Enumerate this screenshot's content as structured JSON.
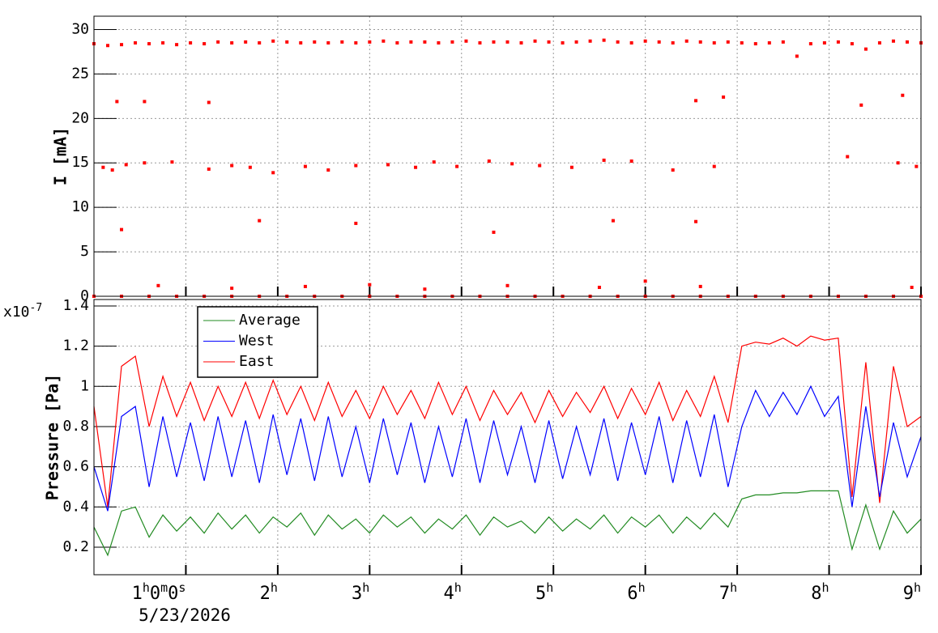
{
  "chart_data": [
    {
      "type": "scatter",
      "ylabel": "I [mA]",
      "color": "#ff0000",
      "grid": true,
      "xlim": [
        0,
        9
      ],
      "ylim": [
        0,
        31.5
      ],
      "yticks": [
        0,
        5,
        10,
        15,
        20,
        25,
        30
      ],
      "x": [
        0,
        0.15,
        0.3,
        0.45,
        0.6,
        0.75,
        0.9,
        1.05,
        1.2,
        1.35,
        1.5,
        1.65,
        1.8,
        1.95,
        2.1,
        2.25,
        2.4,
        2.55,
        2.7,
        2.85,
        3.0,
        3.15,
        3.3,
        3.45,
        3.6,
        3.75,
        3.9,
        4.05,
        4.2,
        4.35,
        4.5,
        4.65,
        4.8,
        4.95,
        5.1,
        5.25,
        5.4,
        5.55,
        5.7,
        5.85,
        6.0,
        6.15,
        6.3,
        6.45,
        6.6,
        6.75,
        6.9,
        7.05,
        7.2,
        7.35,
        7.5,
        7.65,
        7.8,
        7.95,
        8.1,
        8.25,
        8.4,
        8.55,
        8.7,
        8.85,
        9.0,
        0,
        0.3,
        0.6,
        0.9,
        1.2,
        1.5,
        1.8,
        2.1,
        2.4,
        2.7,
        3.0,
        3.3,
        3.6,
        3.9,
        4.2,
        4.5,
        4.8,
        5.1,
        5.4,
        5.7,
        6.0,
        6.3,
        6.6,
        6.9,
        7.2,
        7.5,
        7.8,
        8.1,
        8.4,
        8.7,
        9.0,
        0.1,
        0.2,
        0.35,
        0.55,
        0.85,
        1.25,
        1.5,
        1.7,
        1.95,
        2.3,
        2.55,
        2.85,
        3.2,
        3.5,
        3.7,
        3.95,
        4.3,
        4.55,
        4.85,
        5.2,
        5.55,
        5.85,
        6.3,
        6.75,
        8.2,
        8.75,
        8.95,
        0.25,
        0.55,
        1.25,
        6.55,
        6.85,
        8.35,
        8.8,
        0.3,
        1.8,
        2.85,
        4.35,
        5.65,
        6.55,
        0.7,
        1.5,
        2.3,
        3.0,
        3.6,
        4.5,
        5.5,
        6.0,
        6.6,
        8.9
      ],
      "values": [
        28.4,
        28.2,
        28.3,
        28.5,
        28.4,
        28.5,
        28.3,
        28.5,
        28.4,
        28.6,
        28.5,
        28.6,
        28.5,
        28.7,
        28.6,
        28.5,
        28.6,
        28.5,
        28.6,
        28.5,
        28.6,
        28.7,
        28.5,
        28.6,
        28.6,
        28.5,
        28.6,
        28.7,
        28.5,
        28.6,
        28.6,
        28.5,
        28.7,
        28.6,
        28.5,
        28.6,
        28.7,
        28.8,
        28.6,
        28.5,
        28.7,
        28.6,
        28.5,
        28.7,
        28.6,
        28.5,
        28.6,
        28.5,
        28.4,
        28.5,
        28.6,
        27.0,
        28.4,
        28.5,
        28.6,
        28.4,
        27.8,
        28.5,
        28.7,
        28.6,
        28.5,
        0,
        0,
        0,
        0,
        0,
        0,
        0,
        0,
        0,
        0,
        0,
        0,
        0,
        0,
        0,
        0,
        0,
        0,
        0,
        0,
        0,
        0,
        0,
        0,
        0,
        0,
        0,
        0,
        0,
        0,
        0,
        14.5,
        14.2,
        14.8,
        15.0,
        15.1,
        14.3,
        14.7,
        14.5,
        13.9,
        14.6,
        14.2,
        14.7,
        14.8,
        14.5,
        15.1,
        14.6,
        15.2,
        14.9,
        14.7,
        14.5,
        15.3,
        15.2,
        14.2,
        14.6,
        15.7,
        15.0,
        14.6,
        21.9,
        21.9,
        21.8,
        22.0,
        22.4,
        21.5,
        22.6,
        7.5,
        8.5,
        8.2,
        7.2,
        8.5,
        8.4,
        1.2,
        0.9,
        1.1,
        1.3,
        0.8,
        1.2,
        1.0,
        1.7,
        1.1,
        1.0
      ]
    },
    {
      "type": "line",
      "ylabel": "Pressure [Pa]",
      "multiplier": "x10",
      "multiplier_exp": "-7",
      "grid": true,
      "legend": "top-left",
      "date": "5/23/2026",
      "xlim": [
        0,
        9
      ],
      "ylim": [
        0.063,
        1.432
      ],
      "yticks": [
        0.2,
        0.4,
        0.6,
        0.8,
        1,
        1.2,
        1.4
      ],
      "xticks": [
        {
          "value": 1,
          "label": [
            "1",
            "h",
            "0",
            "m",
            "0",
            "s"
          ]
        },
        {
          "value": 2,
          "label": [
            "2",
            "h"
          ]
        },
        {
          "value": 3,
          "label": [
            "3",
            "h"
          ]
        },
        {
          "value": 4,
          "label": [
            "4",
            "h"
          ]
        },
        {
          "value": 5,
          "label": [
            "5",
            "h"
          ]
        },
        {
          "value": 6,
          "label": [
            "6",
            "h"
          ]
        },
        {
          "value": 7,
          "label": [
            "7",
            "h"
          ]
        },
        {
          "value": 8,
          "label": [
            "8",
            "h"
          ]
        },
        {
          "value": 9,
          "label": [
            "9",
            "h"
          ]
        }
      ],
      "x": [
        0,
        0.15,
        0.3,
        0.45,
        0.6,
        0.75,
        0.9,
        1.05,
        1.2,
        1.35,
        1.5,
        1.65,
        1.8,
        1.95,
        2.1,
        2.25,
        2.4,
        2.55,
        2.7,
        2.85,
        3.0,
        3.15,
        3.3,
        3.45,
        3.6,
        3.75,
        3.9,
        4.05,
        4.2,
        4.35,
        4.5,
        4.65,
        4.8,
        4.95,
        5.1,
        5.25,
        5.4,
        5.55,
        5.7,
        5.85,
        6.0,
        6.15,
        6.3,
        6.45,
        6.6,
        6.75,
        6.9,
        7.05,
        7.2,
        7.35,
        7.5,
        7.65,
        7.8,
        7.95,
        8.1,
        8.25,
        8.4,
        8.55,
        8.7,
        8.85,
        9.0
      ],
      "series": [
        {
          "name": "Average",
          "color": "#228b22",
          "values": [
            0.3,
            0.16,
            0.38,
            0.4,
            0.25,
            0.36,
            0.28,
            0.35,
            0.27,
            0.37,
            0.29,
            0.36,
            0.27,
            0.35,
            0.3,
            0.37,
            0.26,
            0.36,
            0.29,
            0.34,
            0.27,
            0.36,
            0.3,
            0.35,
            0.27,
            0.34,
            0.29,
            0.36,
            0.26,
            0.35,
            0.3,
            0.33,
            0.27,
            0.35,
            0.28,
            0.34,
            0.29,
            0.36,
            0.27,
            0.35,
            0.3,
            0.36,
            0.27,
            0.35,
            0.29,
            0.37,
            0.3,
            0.44,
            0.46,
            0.46,
            0.47,
            0.47,
            0.48,
            0.48,
            0.48,
            0.19,
            0.41,
            0.19,
            0.38,
            0.27,
            0.34
          ]
        },
        {
          "name": "West",
          "color": "#0000ff",
          "values": [
            0.6,
            0.38,
            0.85,
            0.9,
            0.5,
            0.85,
            0.55,
            0.82,
            0.53,
            0.85,
            0.55,
            0.83,
            0.52,
            0.86,
            0.56,
            0.84,
            0.53,
            0.85,
            0.55,
            0.8,
            0.52,
            0.84,
            0.56,
            0.82,
            0.52,
            0.8,
            0.55,
            0.84,
            0.52,
            0.83,
            0.56,
            0.8,
            0.52,
            0.83,
            0.54,
            0.8,
            0.56,
            0.84,
            0.53,
            0.82,
            0.56,
            0.85,
            0.52,
            0.83,
            0.55,
            0.86,
            0.5,
            0.8,
            0.98,
            0.85,
            0.97,
            0.86,
            1.0,
            0.85,
            0.95,
            0.4,
            0.9,
            0.45,
            0.82,
            0.55,
            0.75
          ]
        },
        {
          "name": "East",
          "color": "#ff0000",
          "values": [
            0.9,
            0.4,
            1.1,
            1.15,
            0.8,
            1.05,
            0.85,
            1.02,
            0.83,
            1.0,
            0.85,
            1.02,
            0.84,
            1.03,
            0.86,
            1.0,
            0.83,
            1.02,
            0.85,
            0.98,
            0.84,
            1.0,
            0.86,
            0.98,
            0.84,
            1.02,
            0.86,
            1.0,
            0.83,
            0.98,
            0.86,
            0.97,
            0.82,
            0.98,
            0.85,
            0.97,
            0.87,
            1.0,
            0.84,
            0.99,
            0.86,
            1.02,
            0.83,
            0.98,
            0.85,
            1.05,
            0.82,
            1.2,
            1.22,
            1.21,
            1.24,
            1.2,
            1.25,
            1.23,
            1.24,
            0.45,
            1.12,
            0.42,
            1.1,
            0.8,
            0.85
          ]
        }
      ]
    }
  ]
}
